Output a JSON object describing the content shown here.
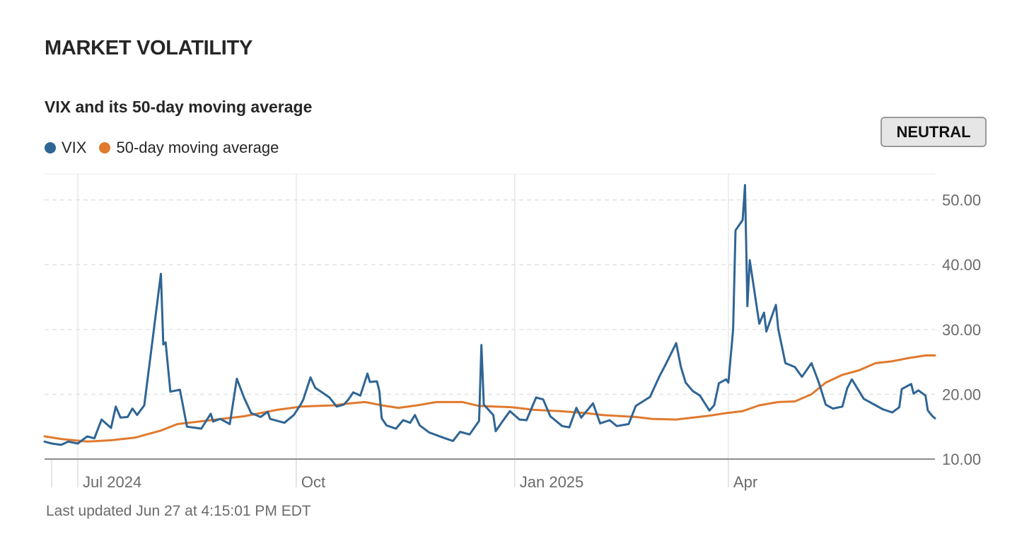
{
  "header": {
    "title": "MARKET VOLATILITY"
  },
  "status_badge": "NEUTRAL",
  "footer": {
    "last_updated": "Last updated Jun 27 at 4:15:01 PM EDT"
  },
  "colors": {
    "vix": "#2f6595",
    "ma": "#e07a2e",
    "grid": "#dddddd",
    "axis": "#8c8c8c",
    "text": "#262626"
  },
  "chart_data": {
    "type": "line",
    "title": "VIX and its 50-day moving average",
    "xlabel": "",
    "ylabel": "",
    "ylim": [
      10,
      54
    ],
    "x_range": [
      "2024-06-17",
      "2025-06-27"
    ],
    "yticks": [
      10,
      20,
      30,
      40,
      50
    ],
    "ytick_labels": [
      "10.00",
      "20.00",
      "30.00",
      "40.00",
      "50.00"
    ],
    "xticks": [
      {
        "date": "2024-07-01",
        "label": "Jul 2024"
      },
      {
        "date": "2024-10-01",
        "label": "Oct"
      },
      {
        "date": "2025-01-01",
        "label": "Jan 2025"
      },
      {
        "date": "2025-04-01",
        "label": "Apr"
      }
    ],
    "grid": true,
    "legend_position": "top-left",
    "series": [
      {
        "name": "VIX",
        "color": "#2f6595",
        "points": [
          [
            "2024-06-17",
            12.7
          ],
          [
            "2024-06-20",
            12.4
          ],
          [
            "2024-06-24",
            12.2
          ],
          [
            "2024-06-27",
            12.7
          ],
          [
            "2024-07-01",
            12.4
          ],
          [
            "2024-07-05",
            13.5
          ],
          [
            "2024-07-08",
            13.2
          ],
          [
            "2024-07-11",
            16.1
          ],
          [
            "2024-07-15",
            14.8
          ],
          [
            "2024-07-17",
            18.1
          ],
          [
            "2024-07-19",
            16.4
          ],
          [
            "2024-07-22",
            16.5
          ],
          [
            "2024-07-24",
            17.8
          ],
          [
            "2024-07-26",
            16.8
          ],
          [
            "2024-07-29",
            18.3
          ],
          [
            "2024-08-01",
            27.0
          ],
          [
            "2024-08-05",
            38.6
          ],
          [
            "2024-08-06",
            27.7
          ],
          [
            "2024-08-07",
            28.0
          ],
          [
            "2024-08-09",
            20.4
          ],
          [
            "2024-08-13",
            20.7
          ],
          [
            "2024-08-16",
            15.0
          ],
          [
            "2024-08-20",
            14.8
          ],
          [
            "2024-08-22",
            14.7
          ],
          [
            "2024-08-26",
            17.0
          ],
          [
            "2024-08-27",
            15.8
          ],
          [
            "2024-08-30",
            16.2
          ],
          [
            "2024-09-03",
            15.4
          ],
          [
            "2024-09-06",
            22.4
          ],
          [
            "2024-09-09",
            19.5
          ],
          [
            "2024-09-12",
            17.1
          ],
          [
            "2024-09-16",
            16.5
          ],
          [
            "2024-09-19",
            17.3
          ],
          [
            "2024-09-20",
            16.2
          ],
          [
            "2024-09-26",
            15.6
          ],
          [
            "2024-09-30",
            16.8
          ],
          [
            "2024-10-03",
            18.5
          ],
          [
            "2024-10-04",
            19.2
          ],
          [
            "2024-10-07",
            22.6
          ],
          [
            "2024-10-09",
            21.0
          ],
          [
            "2024-10-11",
            20.5
          ],
          [
            "2024-10-15",
            19.5
          ],
          [
            "2024-10-18",
            18.1
          ],
          [
            "2024-10-21",
            18.4
          ],
          [
            "2024-10-23",
            19.2
          ],
          [
            "2024-10-25",
            20.3
          ],
          [
            "2024-10-28",
            19.8
          ],
          [
            "2024-10-31",
            23.2
          ],
          [
            "2024-11-01",
            21.9
          ],
          [
            "2024-11-04",
            22.0
          ],
          [
            "2024-11-05",
            20.5
          ],
          [
            "2024-11-06",
            16.3
          ],
          [
            "2024-11-08",
            15.2
          ],
          [
            "2024-11-12",
            14.7
          ],
          [
            "2024-11-15",
            16.0
          ],
          [
            "2024-11-18",
            15.6
          ],
          [
            "2024-11-20",
            16.8
          ],
          [
            "2024-11-22",
            15.2
          ],
          [
            "2024-11-26",
            14.1
          ],
          [
            "2024-12-02",
            13.3
          ],
          [
            "2024-12-06",
            12.8
          ],
          [
            "2024-12-09",
            14.2
          ],
          [
            "2024-12-13",
            13.8
          ],
          [
            "2024-12-17",
            15.9
          ],
          [
            "2024-12-18",
            27.6
          ],
          [
            "2024-12-19",
            18.4
          ],
          [
            "2024-12-20",
            18.0
          ],
          [
            "2024-12-23",
            16.8
          ],
          [
            "2024-12-24",
            14.3
          ],
          [
            "2024-12-27",
            15.9
          ],
          [
            "2024-12-30",
            17.4
          ],
          [
            "2025-01-03",
            16.1
          ],
          [
            "2025-01-06",
            16.0
          ],
          [
            "2025-01-10",
            19.5
          ],
          [
            "2025-01-13",
            19.2
          ],
          [
            "2025-01-16",
            16.6
          ],
          [
            "2025-01-21",
            15.1
          ],
          [
            "2025-01-24",
            14.9
          ],
          [
            "2025-01-27",
            17.9
          ],
          [
            "2025-01-29",
            16.4
          ],
          [
            "2025-02-03",
            18.6
          ],
          [
            "2025-02-06",
            15.5
          ],
          [
            "2025-02-10",
            16.0
          ],
          [
            "2025-02-13",
            15.1
          ],
          [
            "2025-02-18",
            15.4
          ],
          [
            "2025-02-21",
            18.2
          ],
          [
            "2025-02-24",
            18.9
          ],
          [
            "2025-02-27",
            19.6
          ],
          [
            "2025-03-03",
            22.8
          ],
          [
            "2025-03-04",
            23.5
          ],
          [
            "2025-03-06",
            24.9
          ],
          [
            "2025-03-10",
            27.9
          ],
          [
            "2025-03-12",
            24.2
          ],
          [
            "2025-03-14",
            21.8
          ],
          [
            "2025-03-17",
            20.5
          ],
          [
            "2025-03-20",
            19.8
          ],
          [
            "2025-03-24",
            17.5
          ],
          [
            "2025-03-26",
            18.3
          ],
          [
            "2025-03-28",
            21.7
          ],
          [
            "2025-03-31",
            22.3
          ],
          [
            "2025-04-01",
            21.8
          ],
          [
            "2025-04-03",
            30.0
          ],
          [
            "2025-04-04",
            45.3
          ],
          [
            "2025-04-07",
            46.9
          ],
          [
            "2025-04-08",
            52.3
          ],
          [
            "2025-04-09",
            33.6
          ],
          [
            "2025-04-10",
            40.7
          ],
          [
            "2025-04-14",
            30.9
          ],
          [
            "2025-04-16",
            32.6
          ],
          [
            "2025-04-17",
            29.7
          ],
          [
            "2025-04-21",
            33.8
          ],
          [
            "2025-04-22",
            30.1
          ],
          [
            "2025-04-25",
            24.8
          ],
          [
            "2025-04-29",
            24.2
          ],
          [
            "2025-05-02",
            22.7
          ],
          [
            "2025-05-06",
            24.8
          ],
          [
            "2025-05-09",
            21.9
          ],
          [
            "2025-05-12",
            18.4
          ],
          [
            "2025-05-15",
            17.8
          ],
          [
            "2025-05-19",
            18.1
          ],
          [
            "2025-05-21",
            20.9
          ],
          [
            "2025-05-23",
            22.3
          ],
          [
            "2025-05-28",
            19.3
          ],
          [
            "2025-06-02",
            18.3
          ],
          [
            "2025-06-05",
            17.7
          ],
          [
            "2025-06-09",
            17.2
          ],
          [
            "2025-06-12",
            18.0
          ],
          [
            "2025-06-13",
            20.8
          ],
          [
            "2025-06-17",
            21.6
          ],
          [
            "2025-06-18",
            20.1
          ],
          [
            "2025-06-20",
            20.6
          ],
          [
            "2025-06-23",
            19.8
          ],
          [
            "2025-06-24",
            17.5
          ],
          [
            "2025-06-26",
            16.6
          ],
          [
            "2025-06-27",
            16.3
          ]
        ]
      },
      {
        "name": "50-day moving average",
        "color": "#e07a2e",
        "points": [
          [
            "2024-06-17",
            13.5
          ],
          [
            "2024-06-24",
            13.1
          ],
          [
            "2024-07-05",
            12.7
          ],
          [
            "2024-07-15",
            12.9
          ],
          [
            "2024-07-25",
            13.3
          ],
          [
            "2024-08-05",
            14.4
          ],
          [
            "2024-08-12",
            15.4
          ],
          [
            "2024-08-19",
            15.7
          ],
          [
            "2024-08-26",
            16.0
          ],
          [
            "2024-09-09",
            16.6
          ],
          [
            "2024-09-23",
            17.6
          ],
          [
            "2024-10-03",
            18.1
          ],
          [
            "2024-10-17",
            18.3
          ],
          [
            "2024-10-21",
            18.5
          ],
          [
            "2024-10-30",
            18.8
          ],
          [
            "2024-11-06",
            18.3
          ],
          [
            "2024-11-13",
            17.9
          ],
          [
            "2024-11-21",
            18.3
          ],
          [
            "2024-11-29",
            18.8
          ],
          [
            "2024-12-10",
            18.8
          ],
          [
            "2024-12-17",
            18.2
          ],
          [
            "2024-12-31",
            18.0
          ],
          [
            "2025-01-09",
            17.6
          ],
          [
            "2025-01-20",
            17.4
          ],
          [
            "2025-01-31",
            17.1
          ],
          [
            "2025-02-07",
            16.8
          ],
          [
            "2025-02-21",
            16.5
          ],
          [
            "2025-02-28",
            16.2
          ],
          [
            "2025-03-10",
            16.1
          ],
          [
            "2025-03-17",
            16.4
          ],
          [
            "2025-03-24",
            16.7
          ],
          [
            "2025-03-31",
            17.1
          ],
          [
            "2025-04-07",
            17.4
          ],
          [
            "2025-04-14",
            18.3
          ],
          [
            "2025-04-22",
            18.8
          ],
          [
            "2025-04-29",
            18.9
          ],
          [
            "2025-05-06",
            20.0
          ],
          [
            "2025-05-12",
            21.8
          ],
          [
            "2025-05-19",
            23.0
          ],
          [
            "2025-05-26",
            23.7
          ],
          [
            "2025-06-02",
            24.8
          ],
          [
            "2025-06-09",
            25.1
          ],
          [
            "2025-06-16",
            25.6
          ],
          [
            "2025-06-23",
            26.0
          ],
          [
            "2025-06-27",
            26.0
          ]
        ]
      }
    ]
  }
}
